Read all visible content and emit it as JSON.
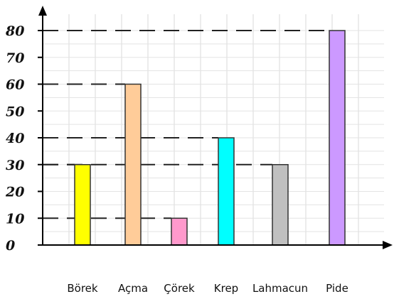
{
  "chart_data": {
    "type": "bar",
    "title": "",
    "xlabel": "",
    "ylabel": "",
    "categories": [
      "Börek",
      "Açma",
      "Çörek",
      "Krep",
      "Lahmacun",
      "Pide"
    ],
    "values": [
      30,
      60,
      10,
      40,
      30,
      80
    ],
    "ylim": [
      0,
      80
    ],
    "yticks": [
      "0",
      "10",
      "20",
      "30",
      "40",
      "50",
      "60",
      "70",
      "80"
    ],
    "grid": true,
    "bar_colors": [
      "#ffff00",
      "#ffcc99",
      "#ff99cc",
      "#00ffff",
      "#c0c0c0",
      "#cc99ff"
    ]
  }
}
